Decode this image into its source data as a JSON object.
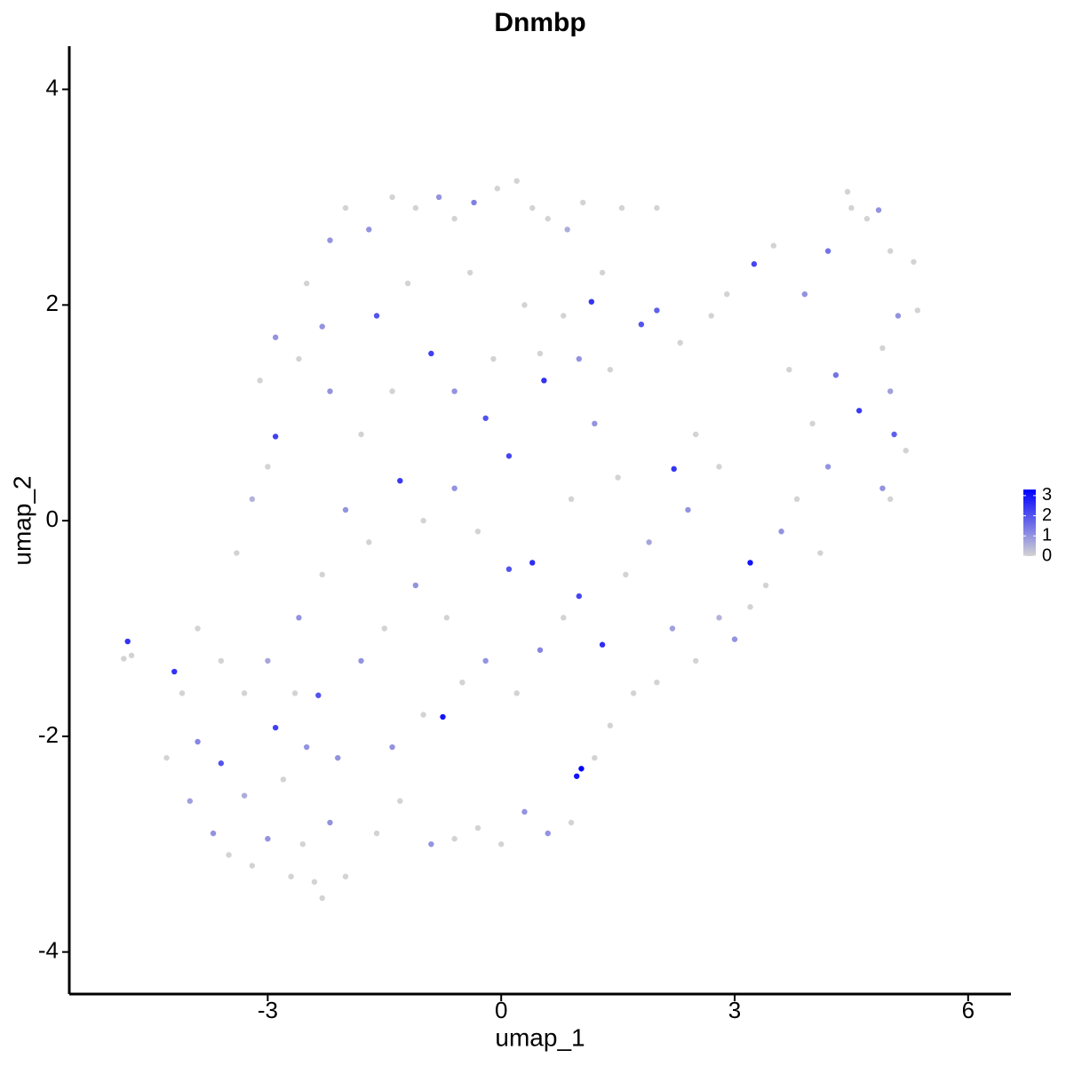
{
  "chart_data": {
    "type": "scatter",
    "title": "Dnmbp",
    "xlabel": "umap_1",
    "ylabel": "umap_2",
    "xlim": [
      -5.55,
      6.55
    ],
    "ylim": [
      -4.39,
      4.4
    ],
    "xticks": [
      -3,
      0,
      3,
      6
    ],
    "yticks": [
      -4,
      -2,
      0,
      2,
      4
    ],
    "grid": false,
    "low_color": "#d3d3d3",
    "high_color": "#0000ff",
    "colorlim": [
      0,
      3.3
    ],
    "colorticks": [
      0,
      1,
      2,
      3
    ],
    "x": [
      -4.8,
      -4.85,
      -4.75,
      -4.2,
      -4.1,
      -4.3,
      -4.0,
      -3.9,
      -3.6,
      -3.7,
      -3.5,
      -3.3,
      -3.2,
      -3.0,
      -2.9,
      -2.8,
      -2.7,
      -2.55,
      -2.4,
      -2.3,
      -2.2,
      -2.0,
      -2.1,
      -2.35,
      -2.5,
      -2.65,
      -3.0,
      -3.3,
      -3.6,
      -3.9,
      -3.4,
      -3.2,
      -3.0,
      -2.9,
      -3.1,
      -2.9,
      -2.6,
      -2.3,
      -2.5,
      -2.2,
      -2.0,
      -1.7,
      -1.4,
      -1.1,
      -0.8,
      -0.6,
      -0.35,
      -0.05,
      0.2,
      0.4,
      0.6,
      0.85,
      1.05,
      1.55,
      1.3,
      1.16,
      0.8,
      0.5,
      1.0,
      1.4,
      1.8,
      2.0,
      2.3,
      2.7,
      2.9,
      3.25,
      3.5,
      3.9,
      4.2,
      4.5,
      4.45,
      4.7,
      4.85,
      5.0,
      5.3,
      5.35,
      5.1,
      4.9,
      5.0,
      5.05,
      5.2,
      4.9,
      5.0,
      4.6,
      4.3,
      4.0,
      4.2,
      3.8,
      3.6,
      3.2,
      3.4,
      3.2,
      3.0,
      2.8,
      2.5,
      2.2,
      2.0,
      1.7,
      1.4,
      1.2,
      1.03,
      0.97,
      0.9,
      0.6,
      0.3,
      0.0,
      -0.3,
      -0.6,
      -0.9,
      -1.3,
      -1.6,
      -1.4,
      -1.0,
      -0.75,
      -0.5,
      -0.2,
      0.2,
      0.5,
      0.8,
      1.0,
      1.3,
      1.6,
      1.9,
      2.22,
      2.5,
      2.8,
      2.4,
      1.5,
      1.2,
      0.9,
      0.4,
      0.1,
      -0.3,
      -0.6,
      -1.0,
      -1.3,
      -1.7,
      -2.0,
      -2.3,
      -2.6,
      -1.8,
      -1.5,
      -1.1,
      -0.7,
      -0.9,
      -0.6,
      -0.2,
      0.1,
      0.55,
      -1.4,
      -1.8,
      -2.2,
      -1.6,
      -1.2,
      -0.4,
      0.3,
      -0.1,
      2.0,
      3.7,
      4.1
    ],
    "y": [
      -1.12,
      -1.28,
      -1.25,
      -1.4,
      -1.6,
      -2.2,
      -2.6,
      -2.05,
      -2.25,
      -2.9,
      -3.1,
      -2.55,
      -3.2,
      -2.95,
      -1.92,
      -2.4,
      -3.3,
      -3.0,
      -3.35,
      -3.5,
      -2.8,
      -3.3,
      -2.2,
      -1.62,
      -2.1,
      -1.6,
      -1.3,
      -1.6,
      -1.3,
      -1.0,
      -0.3,
      0.2,
      0.5,
      0.78,
      1.3,
      1.7,
      1.5,
      1.8,
      2.2,
      2.6,
      2.9,
      2.7,
      3.0,
      2.9,
      3.0,
      2.8,
      2.95,
      3.08,
      3.15,
      2.9,
      2.8,
      2.7,
      2.95,
      2.9,
      2.3,
      2.03,
      1.9,
      1.55,
      1.5,
      1.4,
      1.82,
      1.95,
      1.65,
      1.9,
      2.1,
      2.38,
      2.55,
      2.1,
      2.5,
      2.9,
      3.05,
      2.8,
      2.88,
      2.5,
      2.4,
      1.95,
      1.9,
      1.6,
      1.2,
      0.8,
      0.65,
      0.3,
      0.2,
      1.02,
      1.35,
      0.9,
      0.5,
      0.2,
      -0.1,
      -0.39,
      -0.6,
      -0.8,
      -1.1,
      -0.9,
      -1.3,
      -1.0,
      -1.5,
      -1.6,
      -1.9,
      -2.2,
      -2.3,
      -2.37,
      -2.8,
      -2.9,
      -2.7,
      -3.0,
      -2.85,
      -2.95,
      -3.0,
      -2.6,
      -2.9,
      -2.1,
      -1.8,
      -1.82,
      -1.5,
      -1.3,
      -1.6,
      -1.2,
      -0.9,
      -0.7,
      -1.15,
      -0.5,
      -0.2,
      0.48,
      0.8,
      0.5,
      0.1,
      0.4,
      0.9,
      0.2,
      -0.39,
      -0.45,
      -0.1,
      0.3,
      0.0,
      0.37,
      -0.2,
      0.1,
      -0.5,
      -0.9,
      -1.3,
      -1.0,
      -0.6,
      -0.9,
      1.55,
      1.2,
      0.95,
      0.6,
      1.3,
      1.2,
      0.8,
      1.2,
      1.9,
      2.2,
      2.3,
      2.0,
      1.5,
      2.9,
      1.4,
      -0.3
    ],
    "values": [
      2.5,
      0,
      0,
      2.5,
      0,
      0,
      0.8,
      1.2,
      2,
      1,
      0,
      0.6,
      0,
      1,
      2.3,
      0,
      0,
      0,
      0,
      0,
      1,
      0,
      1,
      2,
      1,
      0,
      0.7,
      0,
      0,
      0,
      0,
      0.5,
      0,
      2.3,
      0,
      1,
      0,
      1,
      0,
      1,
      0,
      1,
      0,
      0,
      1,
      0,
      1.3,
      0,
      0,
      0,
      0,
      0.6,
      0,
      0,
      0,
      2.5,
      0,
      0,
      1,
      0,
      2,
      1.8,
      0,
      0,
      0,
      2.2,
      0,
      1,
      1.5,
      0,
      0,
      0,
      1,
      0,
      0,
      0,
      1,
      0,
      0.8,
      1.8,
      0,
      1,
      0,
      2.4,
      1.5,
      0,
      1,
      0,
      1,
      3,
      0,
      0,
      1,
      0.5,
      0,
      0.8,
      0,
      0,
      0,
      0,
      3.3,
      3,
      0,
      1,
      1,
      0,
      0,
      0,
      1,
      0,
      0,
      1,
      0,
      3,
      0,
      1,
      0,
      1.2,
      0,
      2.2,
      2.6,
      0,
      0.7,
      2.5,
      0,
      0,
      1,
      0,
      1,
      0,
      2.6,
      2,
      0,
      1,
      0,
      2.4,
      0,
      1,
      0,
      1,
      1,
      0,
      1,
      0,
      2.3,
      1,
      2,
      2.2,
      2.5,
      0,
      0,
      1,
      2,
      0,
      0,
      0,
      0,
      0,
      0,
      0
    ]
  }
}
